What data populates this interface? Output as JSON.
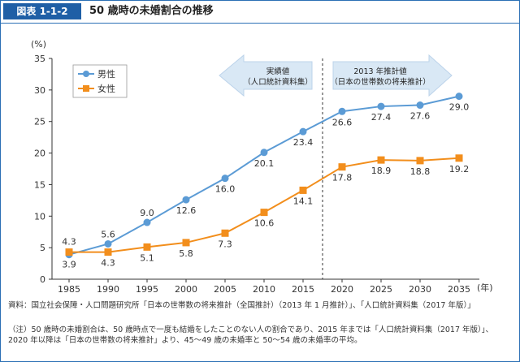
{
  "header": {
    "figure_label": "図表 1-1-2",
    "title": "50 歳時の未婚割合の推移"
  },
  "colors": {
    "male": "#5b9bd5",
    "female": "#f28e1c",
    "accent": "#1f5fa6",
    "arrow_bg": "#d9e8f5"
  },
  "annotations": {
    "actual": {
      "line1": "実績値",
      "line2": "（人口統計資料集）"
    },
    "projection": {
      "line1": "2013 年推計値",
      "line2": "（日本の世帯数の将来推計）"
    }
  },
  "chart_data": {
    "type": "line",
    "x": [
      "1985",
      "1990",
      "1995",
      "2000",
      "2005",
      "2010",
      "2015",
      "2020",
      "2025",
      "2030",
      "2035"
    ],
    "ylim": [
      0,
      35
    ],
    "yticks": [
      "0",
      "5",
      "10",
      "15",
      "20",
      "25",
      "30",
      "35"
    ],
    "yunit": "(%)",
    "xunit": "(年)",
    "divider_between": [
      "2015",
      "2020"
    ],
    "legend_position": "top-left",
    "grid": false,
    "series": [
      {
        "name": "男性",
        "values": [
          3.9,
          5.6,
          9.0,
          12.6,
          16.0,
          20.1,
          23.4,
          26.6,
          27.4,
          27.6,
          29.0
        ],
        "labels": [
          "3.9",
          "5.6",
          "9.0",
          "12.6",
          "16.0",
          "20.1",
          "23.4",
          "26.6",
          "27.4",
          "27.6",
          "29.0"
        ]
      },
      {
        "name": "女性",
        "values": [
          4.3,
          4.3,
          5.1,
          5.8,
          7.3,
          10.6,
          14.1,
          17.8,
          18.9,
          18.8,
          19.2
        ],
        "labels": [
          "4.3",
          "4.3",
          "5.1",
          "5.8",
          "7.3",
          "10.6",
          "14.1",
          "17.8",
          "18.9",
          "18.8",
          "19.2"
        ]
      }
    ]
  },
  "notes": {
    "source": "資料：国立社会保障・人口問題研究所「日本の世帯数の将来推計（全国推計）（2013 年 1 月推計）」、「人口統計資料集（2017 年版）」",
    "note": "（注）50 歳時の未婚割合は、50 歳時点で一度も結婚をしたことのない人の割合であり、2015 年までは「人口統計資料集（2017 年版）」、2020 年以降は「日本の世帯数の将来推計」より、45〜49 歳の未婚率と 50〜54 歳の未婚率の平均。"
  }
}
